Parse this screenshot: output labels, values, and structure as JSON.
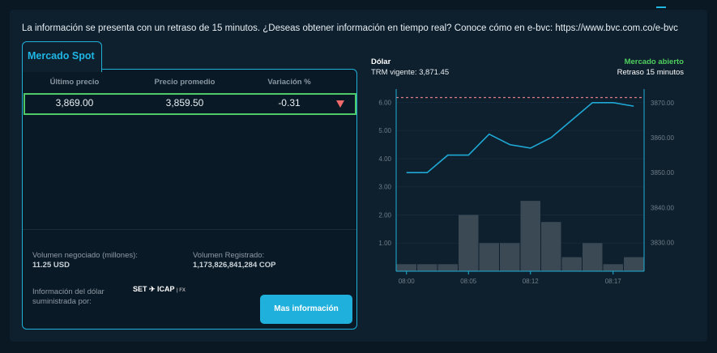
{
  "notice": "La información se presenta con un retraso de 15 minutos. ¿Deseas obtener información en tiempo real? Conoce cómo en e-bvc: https://www.bvc.com.co/e-bvc",
  "tab": "Mercado Spot",
  "table": {
    "headers": [
      "Último precio",
      "Precio promedio",
      "Variación %"
    ],
    "row": [
      "3,869.00",
      "3,859.50",
      "-0.31"
    ],
    "trend": "down",
    "trend_color": "#f06a6a"
  },
  "volume": {
    "label": "Volumen negociado (millones):",
    "value": "11.25 USD"
  },
  "registered": {
    "label": "Volumen Registrado:",
    "value": "1,173,826,841,284 COP"
  },
  "provider": {
    "label_1": "Información del dólar",
    "label_2": "suministrada por:",
    "logo": "SET ICAP | FX"
  },
  "button": "Mas información",
  "chart_header": {
    "title": "Dólar",
    "trm": "TRM vigente: 3,871.45",
    "status": "Mercado abierto",
    "delay": "Retraso 15 minutos"
  },
  "chart_data": {
    "type": "bar+line",
    "x_ticks": [
      "08:00",
      "",
      "",
      "08:05",
      "",
      "",
      "08:12",
      "",
      "",
      "",
      "08:17",
      ""
    ],
    "series": [
      {
        "type": "bar",
        "axis": "left",
        "values": [
          0.25,
          0.25,
          0.25,
          2.0,
          1.0,
          1.0,
          2.5,
          1.75,
          0.5,
          1.0,
          0.25,
          0.5
        ],
        "color": "#3a4954"
      },
      {
        "type": "line",
        "axis": "right",
        "values": [
          3850,
          3850,
          3855,
          3855,
          3861,
          3858,
          3857,
          3860,
          3865,
          3870,
          3870,
          3869
        ],
        "color": "#1ea9d6"
      }
    ],
    "reference_line": {
      "value": 3871.45,
      "axis": "right",
      "color": "#e07a86",
      "style": "dashed"
    },
    "y_left": {
      "ticks": [
        "1.00",
        "2.00",
        "3.00",
        "4.00",
        "5.00",
        "6.00"
      ],
      "range": [
        0,
        6.3
      ]
    },
    "y_right": {
      "ticks": [
        "3830.00",
        "3840.00",
        "3850.00",
        "3860.00",
        "3870.00"
      ],
      "range": [
        3821.8,
        3872.5
      ]
    },
    "grid": true
  }
}
